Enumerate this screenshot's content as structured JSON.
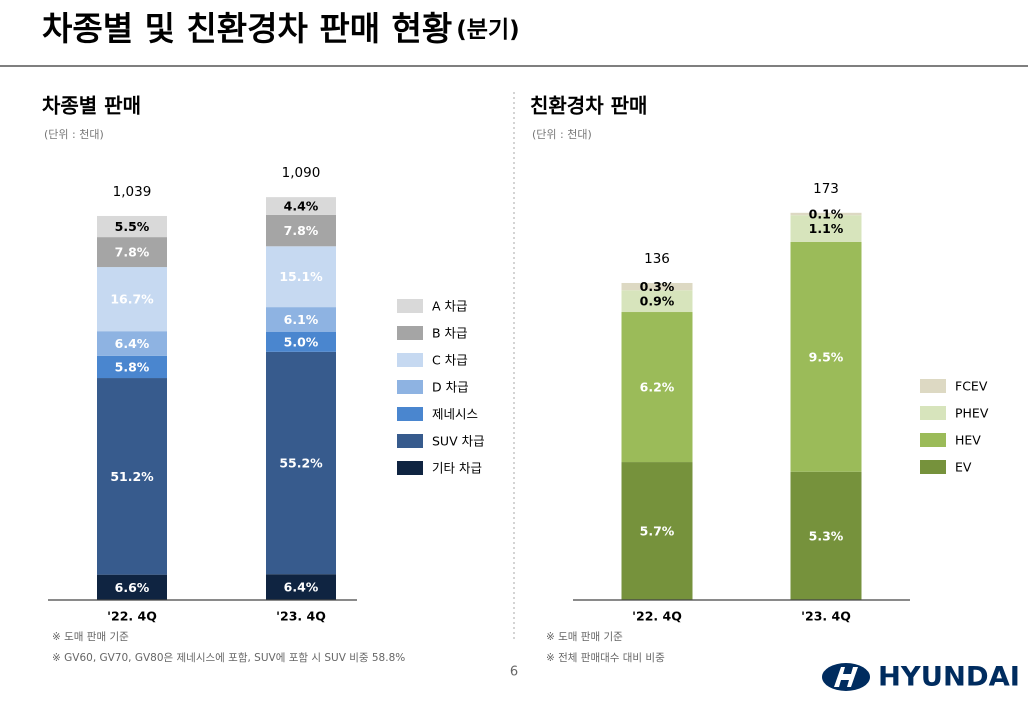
{
  "header": {
    "title": "차종별 및 친환경차 판매 현황",
    "title_suffix": "(분기)"
  },
  "chart_data": [
    {
      "type": "stacked_bar",
      "title": "차종별 판매",
      "unit": "(단위 : 천대)",
      "categories": [
        "'22. 4Q",
        "'23. 4Q"
      ],
      "totals": {
        "values": [
          1039,
          1090
        ],
        "value_labels": [
          "1,039",
          "1,090"
        ]
      },
      "series": [
        {
          "name": "기타 차급",
          "color": "#0f2441",
          "label_color": "#ffffff",
          "values": [
            6.6,
            6.4
          ],
          "value_labels": [
            "6.6%",
            "6.4%"
          ]
        },
        {
          "name": "SUV 차급",
          "color": "#375b8d",
          "label_color": "#ffffff",
          "values": [
            51.2,
            55.2
          ],
          "value_labels": [
            "51.2%",
            "55.2%"
          ]
        },
        {
          "name": "제네시스",
          "color": "#4a86cf",
          "label_color": "#ffffff",
          "values": [
            5.8,
            5.0
          ],
          "value_labels": [
            "5.8%",
            "5.0%"
          ]
        },
        {
          "name": "D 차급",
          "color": "#8eb3e2",
          "label_color": "#ffffff",
          "values": [
            6.4,
            6.1
          ],
          "value_labels": [
            "6.4%",
            "6.1%"
          ]
        },
        {
          "name": "C 차급",
          "color": "#c6d9f1",
          "label_color": "#ffffff",
          "values": [
            16.7,
            15.1
          ],
          "value_labels": [
            "16.7%",
            "15.1%"
          ]
        },
        {
          "name": "B 차급",
          "color": "#a5a5a5",
          "label_color": "#ffffff",
          "values": [
            7.8,
            7.8
          ],
          "value_labels": [
            "7.8%",
            "7.8%"
          ]
        },
        {
          "name": "A 차급",
          "color": "#d9d9d9",
          "label_color": "#000000",
          "values": [
            5.5,
            4.4
          ],
          "value_labels": [
            "5.5%",
            "4.4%"
          ]
        }
      ],
      "footnotes": [
        "※ 도매 판매 기준",
        "※ GV60, GV70, GV80은 제네시스에 포함, SUV에 포함 시 SUV 비중 58.8%"
      ]
    },
    {
      "type": "stacked_bar",
      "title": "친환경차 판매",
      "unit": "(단위 : 천대)",
      "categories": [
        "'22. 4Q",
        "'23. 4Q"
      ],
      "totals": {
        "values": [
          136,
          173
        ]
      },
      "series": [
        {
          "name": "EV",
          "color": "#76923c",
          "label_color": "#ffffff",
          "values": [
            5.7,
            5.3
          ],
          "value_labels": [
            "5.7%",
            "5.3%"
          ]
        },
        {
          "name": "HEV",
          "color": "#9bbb59",
          "label_color": "#ffffff",
          "values": [
            6.2,
            9.5
          ],
          "value_labels": [
            "6.2%",
            "9.5%"
          ]
        },
        {
          "name": "PHEV",
          "color": "#d7e4bc",
          "label_color": "#000000",
          "values": [
            0.9,
            1.1
          ],
          "value_labels": [
            "0.9%",
            "1.1%"
          ]
        },
        {
          "name": "FCEV",
          "color": "#ddd9c3",
          "label_color": "#000000",
          "values": [
            0.3,
            0.1
          ],
          "value_labels": [
            "0.3%",
            "0.1%"
          ]
        }
      ],
      "footnotes": [
        "※ 도매 판매 기준",
        "※ 전체 판매대수 대비 비중"
      ]
    }
  ],
  "page_number": "6",
  "logo": "HYUNDAI"
}
